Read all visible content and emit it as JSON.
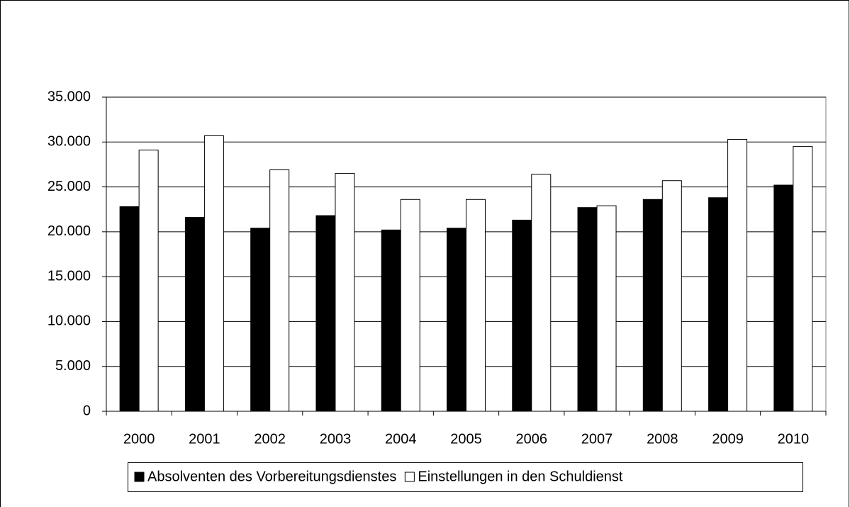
{
  "chart_data": {
    "type": "bar",
    "categories": [
      "2000",
      "2001",
      "2002",
      "2003",
      "2004",
      "2005",
      "2006",
      "2007",
      "2008",
      "2009",
      "2010"
    ],
    "series": [
      {
        "name": "Absolventen des Vorbereitungsdienstes",
        "color": "#000000",
        "values": [
          22800,
          21600,
          20400,
          21800,
          20200,
          20400,
          21300,
          22700,
          23600,
          23800,
          25200
        ]
      },
      {
        "name": "Einstellungen in den Schuldienst",
        "color": "#ffffff",
        "values": [
          29100,
          30700,
          26900,
          26500,
          23600,
          23600,
          26400,
          22900,
          25700,
          30300,
          29500
        ]
      }
    ],
    "ylim": [
      0,
      35000
    ],
    "yticks": [
      0,
      {
        "value": 5000,
        "label": "5.000"
      },
      {
        "value": 10000,
        "label": "10.000"
      },
      {
        "value": 15000,
        "label": "15.000"
      },
      {
        "value": 20000,
        "label": "20.000"
      },
      {
        "value": 25000,
        "label": "25.000"
      },
      {
        "value": 30000,
        "label": "30.000"
      },
      {
        "value": 35000,
        "label": "35.000"
      }
    ],
    "grid": true,
    "legend": "bottom"
  }
}
